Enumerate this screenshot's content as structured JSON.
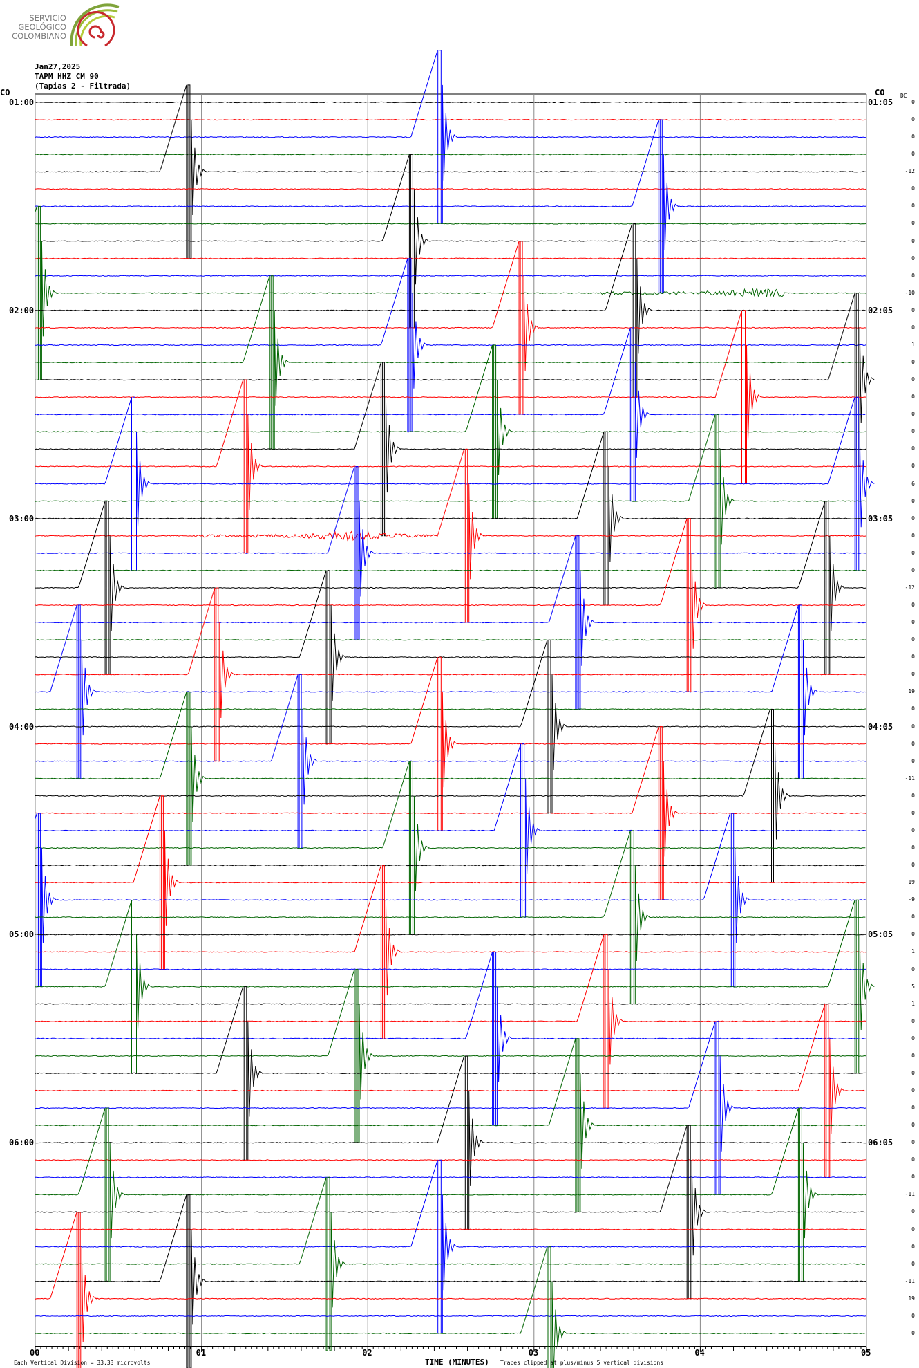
{
  "logo": {
    "text": [
      "SERVICIO",
      "GEOLÓGICO",
      "COLOMBIANO"
    ],
    "colors": [
      "#7fa33a",
      "#b5cc3a",
      "#c8282d"
    ]
  },
  "header": {
    "date": "Jan27,2025",
    "station": "TAPM HHZ CM 90",
    "name": "(Tapias 2 - Filtrada)"
  },
  "left_labels": [
    {
      "trace": 0,
      "prefix": "CO",
      "time": "01:00"
    },
    {
      "trace": 12,
      "time": "02:00"
    },
    {
      "trace": 24,
      "time": "03:00"
    },
    {
      "trace": 36,
      "time": "04:00"
    },
    {
      "trace": 48,
      "time": "05:00"
    },
    {
      "trace": 60,
      "time": "06:00"
    }
  ],
  "right_labels": [
    {
      "trace": 0,
      "prefix": "CO",
      "time": "01:05"
    },
    {
      "trace": 12,
      "time": "02:05"
    },
    {
      "trace": 24,
      "time": "03:05"
    },
    {
      "trace": 36,
      "time": "04:05"
    },
    {
      "trace": 48,
      "time": "05:05"
    },
    {
      "trace": 60,
      "time": "06:05"
    }
  ],
  "dc_header": "DC",
  "chart_data": {
    "type": "line",
    "subtype": "helicorder",
    "xlabel": "TIME (MINUTES)",
    "xlim": [
      0,
      5
    ],
    "xticks": [
      "00",
      "01",
      "02",
      "03",
      "04",
      "05"
    ],
    "grid": true,
    "trace_count": 72,
    "minutes_per_trace": 5,
    "trace_colors": [
      "#000000",
      "#ff0000",
      "#0000ff",
      "#006400"
    ],
    "dc_offsets": [
      0,
      0,
      0,
      0,
      -12,
      0,
      0,
      0,
      0,
      0,
      0,
      -10,
      0,
      0,
      1,
      0,
      0,
      0,
      0,
      0,
      0,
      0,
      6,
      0,
      0,
      0,
      0,
      0,
      -12,
      0,
      0,
      0,
      0,
      0,
      19,
      0,
      0,
      0,
      0,
      -11,
      0,
      0,
      0,
      0,
      0,
      19,
      -9,
      0,
      0,
      1,
      0,
      5,
      1,
      0,
      0,
      0,
      0,
      0,
      0,
      0,
      0,
      0,
      0,
      -11,
      0,
      0,
      0,
      0,
      -11,
      19,
      0,
      0
    ],
    "clip_divisions": 5,
    "pulses_minutes": [
      {
        "trace": 2,
        "minute": 2.42
      },
      {
        "trace": 4,
        "minute": 0.91
      },
      {
        "trace": 6,
        "minute": 3.75
      },
      {
        "trace": 8,
        "minute": 2.25
      },
      {
        "trace": 11,
        "minute": 0.01
      },
      {
        "trace": 12,
        "minute": 3.59
      },
      {
        "trace": 13,
        "minute": 2.91
      },
      {
        "trace": 14,
        "minute": 2.24
      },
      {
        "trace": 15,
        "minute": 1.41
      },
      {
        "trace": 16,
        "minute": 4.93
      },
      {
        "trace": 17,
        "minute": 4.25
      },
      {
        "trace": 18,
        "minute": 3.58
      },
      {
        "trace": 19,
        "minute": 2.75
      },
      {
        "trace": 20,
        "minute": 2.08
      },
      {
        "trace": 21,
        "minute": 1.25
      },
      {
        "trace": 22,
        "minute": 0.58
      },
      {
        "trace": 22,
        "minute": 4.93
      },
      {
        "trace": 23,
        "minute": 4.09
      },
      {
        "trace": 24,
        "minute": 3.42
      },
      {
        "trace": 25,
        "minute": 2.58
      },
      {
        "trace": 26,
        "minute": 1.92
      },
      {
        "trace": 28,
        "minute": 0.42
      },
      {
        "trace": 28,
        "minute": 4.75
      },
      {
        "trace": 29,
        "minute": 3.92
      },
      {
        "trace": 30,
        "minute": 3.25
      },
      {
        "trace": 32,
        "minute": 1.75
      },
      {
        "trace": 33,
        "minute": 1.08
      },
      {
        "trace": 34,
        "minute": 0.25
      },
      {
        "trace": 34,
        "minute": 4.59
      },
      {
        "trace": 36,
        "minute": 3.08
      },
      {
        "trace": 37,
        "minute": 2.42
      },
      {
        "trace": 38,
        "minute": 1.58
      },
      {
        "trace": 39,
        "minute": 0.91
      },
      {
        "trace": 40,
        "minute": 4.42
      },
      {
        "trace": 41,
        "minute": 3.75
      },
      {
        "trace": 42,
        "minute": 2.92
      },
      {
        "trace": 43,
        "minute": 2.25
      },
      {
        "trace": 45,
        "minute": 0.75
      },
      {
        "trace": 46,
        "minute": 0.01
      },
      {
        "trace": 46,
        "minute": 4.18
      },
      {
        "trace": 47,
        "minute": 3.58
      },
      {
        "trace": 49,
        "minute": 2.08
      },
      {
        "trace": 51,
        "minute": 0.58
      },
      {
        "trace": 51,
        "minute": 4.93
      },
      {
        "trace": 53,
        "minute": 3.42
      },
      {
        "trace": 54,
        "minute": 2.75
      },
      {
        "trace": 55,
        "minute": 1.92
      },
      {
        "trace": 56,
        "minute": 1.25
      },
      {
        "trace": 57,
        "minute": 4.75
      },
      {
        "trace": 58,
        "minute": 4.09
      },
      {
        "trace": 59,
        "minute": 3.25
      },
      {
        "trace": 60,
        "minute": 2.58
      },
      {
        "trace": 63,
        "minute": 0.42
      },
      {
        "trace": 63,
        "minute": 4.59
      },
      {
        "trace": 64,
        "minute": 3.92
      },
      {
        "trace": 66,
        "minute": 2.42
      },
      {
        "trace": 67,
        "minute": 1.75
      },
      {
        "trace": 68,
        "minute": 0.91
      },
      {
        "trace": 69,
        "minute": 0.25
      },
      {
        "trace": 71,
        "minute": 3.08
      }
    ],
    "noise_bursts": [
      {
        "trace": 25,
        "start_minute": 0.96,
        "end_minute": 2.4
      },
      {
        "trace": 11,
        "start_minute": 3.4,
        "end_minute": 4.5
      }
    ]
  },
  "footer": {
    "scale": "Each Vertical Division =   33.33 microvolts",
    "clip": "Traces clipped at plus/minus 5 vertical divisions"
  }
}
